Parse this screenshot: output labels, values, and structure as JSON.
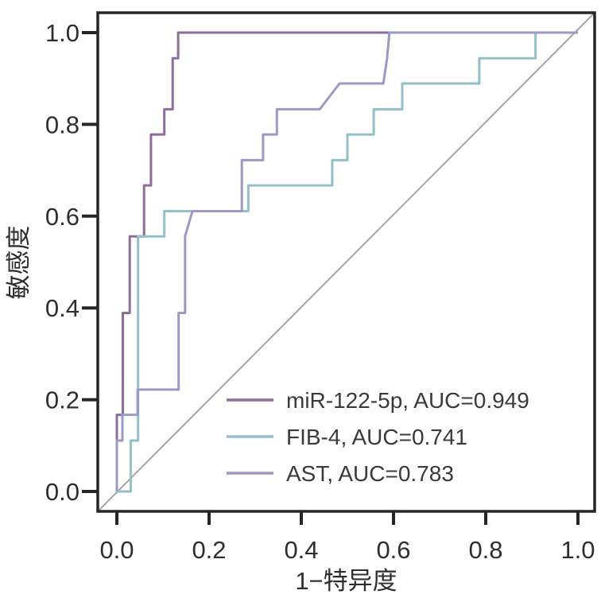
{
  "figure": {
    "kind": "roc-analysis-plot",
    "background_color": "#ffffff",
    "axis_color": "#262626",
    "text_color": "#2e2e2e",
    "legend_text_color": "#3a3a3a"
  },
  "chart_data": {
    "type": "line",
    "subtype": "roc-step-curves",
    "title": "",
    "xlabel": "1−特异度",
    "ylabel": "敏感度",
    "xlim": [
      0,
      1
    ],
    "ylim": [
      0,
      1
    ],
    "grid": "off",
    "legend_position": "lower right",
    "x_ticks": [
      "0.0",
      "0.2",
      "0.4",
      "0.6",
      "0.8",
      "1.0"
    ],
    "y_ticks": [
      "0.0",
      "0.2",
      "0.4",
      "0.6",
      "0.8",
      "1.0"
    ],
    "reference_line": {
      "name": "chance-diagonal",
      "from": [
        0,
        0
      ],
      "to": [
        1,
        1
      ],
      "color": "#a5a5a5"
    },
    "series": [
      {
        "name": "miR-122-5p",
        "auc": 0.949,
        "label": "miR-122-5p, AUC=0.949",
        "color": "#8d6d9c",
        "points": [
          [
            0,
            0
          ],
          [
            0,
            0.167
          ],
          [
            0.013,
            0.167
          ],
          [
            0.013,
            0.389
          ],
          [
            0.028,
            0.389
          ],
          [
            0.028,
            0.556
          ],
          [
            0.059,
            0.556
          ],
          [
            0.059,
            0.667
          ],
          [
            0.074,
            0.667
          ],
          [
            0.074,
            0.778
          ],
          [
            0.103,
            0.778
          ],
          [
            0.103,
            0.833
          ],
          [
            0.121,
            0.833
          ],
          [
            0.121,
            0.944
          ],
          [
            0.133,
            0.944
          ],
          [
            0.133,
            1
          ],
          [
            1,
            1
          ]
        ]
      },
      {
        "name": "FIB-4",
        "auc": 0.741,
        "label": "FIB-4, AUC=0.741",
        "color": "#93bfc8",
        "points": [
          [
            0,
            0
          ],
          [
            0.03,
            0
          ],
          [
            0.03,
            0.111
          ],
          [
            0.046,
            0.111
          ],
          [
            0.046,
            0.556
          ],
          [
            0.103,
            0.556
          ],
          [
            0.103,
            0.611
          ],
          [
            0.285,
            0.611
          ],
          [
            0.285,
            0.667
          ],
          [
            0.467,
            0.667
          ],
          [
            0.467,
            0.722
          ],
          [
            0.5,
            0.722
          ],
          [
            0.5,
            0.778
          ],
          [
            0.557,
            0.778
          ],
          [
            0.557,
            0.833
          ],
          [
            0.619,
            0.833
          ],
          [
            0.619,
            0.889
          ],
          [
            0.786,
            0.889
          ],
          [
            0.786,
            0.944
          ],
          [
            0.908,
            0.944
          ],
          [
            0.908,
            1
          ],
          [
            1,
            1
          ]
        ]
      },
      {
        "name": "AST",
        "auc": 0.783,
        "label": "AST, AUC=0.783",
        "color": "#9b9ac7",
        "points": [
          [
            0,
            0
          ],
          [
            0,
            0.111
          ],
          [
            0.012,
            0.111
          ],
          [
            0.012,
            0.167
          ],
          [
            0.045,
            0.167
          ],
          [
            0.045,
            0.222
          ],
          [
            0.134,
            0.222
          ],
          [
            0.134,
            0.389
          ],
          [
            0.148,
            0.389
          ],
          [
            0.148,
            0.556
          ],
          [
            0.164,
            0.611
          ],
          [
            0.271,
            0.611
          ],
          [
            0.271,
            0.722
          ],
          [
            0.317,
            0.722
          ],
          [
            0.317,
            0.778
          ],
          [
            0.347,
            0.778
          ],
          [
            0.347,
            0.833
          ],
          [
            0.44,
            0.833
          ],
          [
            0.483,
            0.889
          ],
          [
            0.578,
            0.889
          ],
          [
            0.586,
            0.944
          ],
          [
            0.591,
            1
          ],
          [
            1,
            1
          ]
        ]
      }
    ]
  }
}
